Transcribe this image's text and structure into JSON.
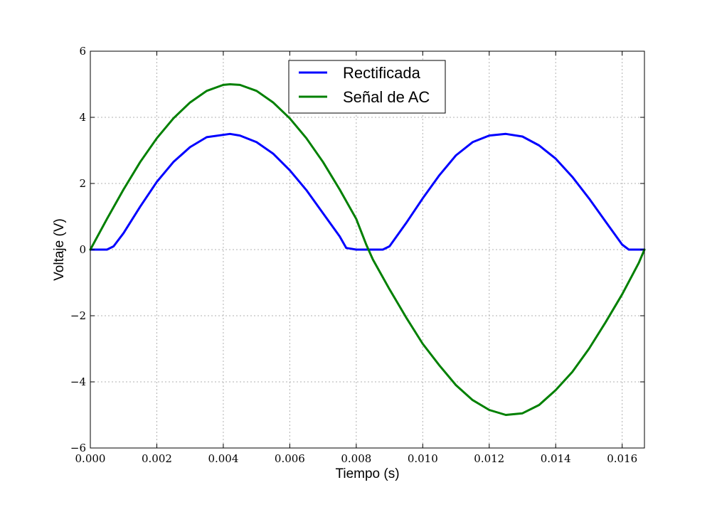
{
  "chart_data": {
    "type": "line",
    "xlabel": "Tiempo (s)",
    "ylabel": "Voltaje (V)",
    "xlim": [
      0.0,
      0.01667
    ],
    "ylim": [
      -6,
      6
    ],
    "xticks": [
      0.0,
      0.002,
      0.004,
      0.006,
      0.008,
      0.01,
      0.012,
      0.014,
      0.016
    ],
    "xtick_labels": [
      "0.000",
      "0.002",
      "0.004",
      "0.006",
      "0.008",
      "0.010",
      "0.012",
      "0.014",
      "0.016"
    ],
    "yticks": [
      -6,
      -4,
      -2,
      0,
      2,
      4,
      6
    ],
    "ytick_labels": [
      "−6",
      "−4",
      "−2",
      "0",
      "2",
      "4",
      "6"
    ],
    "grid": true,
    "legend_position": "top-center",
    "series": [
      {
        "name": "Rectificada",
        "color": "#0000ff",
        "x": [
          0.0,
          0.0005,
          0.0007,
          0.001,
          0.0015,
          0.002,
          0.0025,
          0.003,
          0.0035,
          0.0042,
          0.0045,
          0.005,
          0.0055,
          0.006,
          0.0065,
          0.007,
          0.0075,
          0.0077,
          0.008,
          0.0085,
          0.0088,
          0.009,
          0.0095,
          0.01,
          0.0105,
          0.011,
          0.0115,
          0.012,
          0.0125,
          0.013,
          0.0135,
          0.014,
          0.0145,
          0.015,
          0.0155,
          0.016,
          0.0162,
          0.0165,
          0.01667
        ],
        "y": [
          0.0,
          0.0,
          0.1,
          0.5,
          1.3,
          2.05,
          2.65,
          3.1,
          3.4,
          3.5,
          3.45,
          3.25,
          2.9,
          2.4,
          1.8,
          1.1,
          0.4,
          0.05,
          0.0,
          0.0,
          0.0,
          0.1,
          0.8,
          1.55,
          2.25,
          2.85,
          3.25,
          3.45,
          3.5,
          3.42,
          3.15,
          2.75,
          2.2,
          1.55,
          0.85,
          0.15,
          0.0,
          0.0,
          0.0
        ]
      },
      {
        "name": "Señal de AC",
        "color": "#008000",
        "x": [
          0.0,
          0.0005,
          0.001,
          0.0015,
          0.002,
          0.0025,
          0.003,
          0.0035,
          0.004,
          0.0042,
          0.0045,
          0.005,
          0.0055,
          0.006,
          0.0065,
          0.007,
          0.0075,
          0.008,
          0.0083,
          0.0085,
          0.009,
          0.0095,
          0.01,
          0.0105,
          0.011,
          0.0115,
          0.012,
          0.0125,
          0.013,
          0.0135,
          0.014,
          0.0145,
          0.015,
          0.0155,
          0.016,
          0.0165,
          0.01667
        ],
        "y": [
          0.0,
          0.93,
          1.82,
          2.65,
          3.37,
          3.97,
          4.45,
          4.8,
          4.98,
          5.0,
          4.98,
          4.8,
          4.45,
          3.97,
          3.37,
          2.65,
          1.82,
          0.93,
          0.15,
          -0.3,
          -1.2,
          -2.05,
          -2.85,
          -3.5,
          -4.1,
          -4.55,
          -4.85,
          -5.0,
          -4.95,
          -4.7,
          -4.25,
          -3.7,
          -3.0,
          -2.2,
          -1.35,
          -0.4,
          0.0
        ]
      }
    ]
  }
}
